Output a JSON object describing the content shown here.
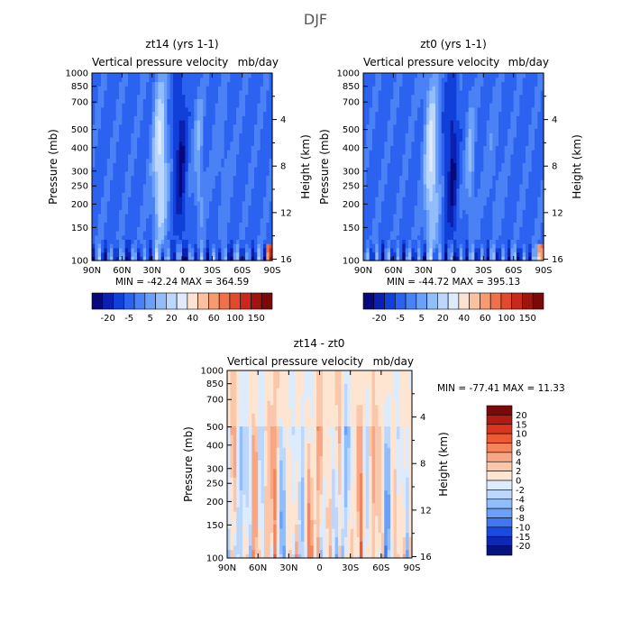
{
  "figure_title": "DJF",
  "chart_data": [
    {
      "type": "heatmap",
      "id": "p1",
      "title": "zt14 (yrs 1-1)",
      "subtitle_left": "Vertical pressure velocity",
      "subtitle_right": "mb/day",
      "xlabel": "",
      "ylabel": "Pressure (mb)",
      "ylabel_right": "Height (km)",
      "x_ticks": [
        "90N",
        "60N",
        "30N",
        "0",
        "30S",
        "60S",
        "90S"
      ],
      "y_ticks": [
        "100",
        "150",
        "200",
        "250",
        "300",
        "400",
        "500",
        "700",
        "850",
        "1000"
      ],
      "y_tick_values": [
        100,
        150,
        200,
        250,
        300,
        400,
        500,
        700,
        850,
        1000
      ],
      "ylim": [
        1000,
        100
      ],
      "height_ticks": [
        "16",
        "12",
        "8",
        "4"
      ],
      "stats": "MIN = -42.24   MAX = 364.59",
      "colorbar_orientation": "horizontal",
      "colorbar_labels": [
        "-20",
        "-5",
        "5",
        "20",
        "40",
        "60",
        "100",
        "150"
      ]
    },
    {
      "type": "heatmap",
      "id": "p2",
      "title": "zt0 (yrs 1-1)",
      "subtitle_left": "Vertical pressure velocity",
      "subtitle_right": "mb/day",
      "xlabel": "",
      "ylabel": "Pressure (mb)",
      "ylabel_right": "Height (km)",
      "x_ticks": [
        "90N",
        "60N",
        "30N",
        "0",
        "30S",
        "60S",
        "90S"
      ],
      "y_ticks": [
        "100",
        "150",
        "200",
        "250",
        "300",
        "400",
        "500",
        "700",
        "850",
        "1000"
      ],
      "y_tick_values": [
        100,
        150,
        200,
        250,
        300,
        400,
        500,
        700,
        850,
        1000
      ],
      "ylim": [
        1000,
        100
      ],
      "height_ticks": [
        "16",
        "12",
        "8",
        "4"
      ],
      "stats": "MIN = -44.72   MAX = 395.13",
      "colorbar_orientation": "horizontal",
      "colorbar_labels": [
        "-20",
        "-5",
        "5",
        "20",
        "40",
        "60",
        "100",
        "150"
      ]
    },
    {
      "type": "heatmap",
      "id": "p3",
      "title": "zt14 - zt0",
      "subtitle_left": "Vertical pressure velocity",
      "subtitle_right": "mb/day",
      "xlabel": "",
      "ylabel": "Pressure (mb)",
      "ylabel_right": "Height (km)",
      "x_ticks": [
        "90N",
        "60N",
        "30N",
        "0",
        "30S",
        "60S",
        "90S"
      ],
      "y_ticks": [
        "100",
        "150",
        "200",
        "250",
        "300",
        "400",
        "500",
        "700",
        "850",
        "1000"
      ],
      "y_tick_values": [
        100,
        150,
        200,
        250,
        300,
        400,
        500,
        700,
        850,
        1000
      ],
      "ylim": [
        1000,
        100
      ],
      "height_ticks": [
        "16",
        "12",
        "8",
        "4"
      ],
      "stats": "MIN = -77.41   MAX =  11.33",
      "colorbar_orientation": "vertical",
      "colorbar_labels": [
        "20",
        "15",
        "10",
        "8",
        "6",
        "4",
        "2",
        "0",
        "-2",
        "-4",
        "-6",
        "-8",
        "-10",
        "-15",
        "-20"
      ]
    }
  ],
  "colors": {
    "field_scale": [
      "#08087a",
      "#0a20b0",
      "#1040d8",
      "#2c62f0",
      "#4a82f6",
      "#6aa0fa",
      "#92bdfb",
      "#bcd6fc",
      "#dfeafd",
      "#fde2cf",
      "#fbc0a0",
      "#f79a72",
      "#f0704a",
      "#e14a2e",
      "#c72a1a",
      "#a0140e",
      "#7a0a0a"
    ],
    "diff_scale": [
      "#7a0a0a",
      "#b01c12",
      "#d8361e",
      "#ec5a34",
      "#f6845a",
      "#f9a684",
      "#fbc7ab",
      "#fde5d2",
      "#dcebfd",
      "#bcd6fc",
      "#92bdfb",
      "#6aa0fa",
      "#3f78f2",
      "#1a4be0",
      "#0c28b4",
      "#06127e"
    ]
  }
}
